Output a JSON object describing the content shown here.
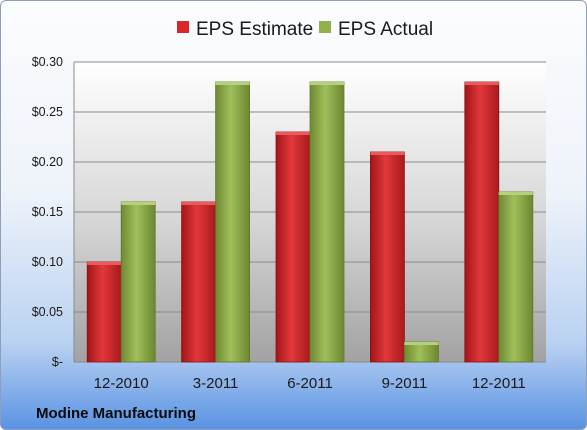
{
  "chart_data": {
    "type": "bar",
    "categories": [
      "12-2010",
      "3-2011",
      "6-2011",
      "9-2011",
      "12-2011"
    ],
    "series": [
      {
        "name": "EPS Estimate",
        "values": [
          0.1,
          0.16,
          0.23,
          0.21,
          0.28
        ],
        "color": "#d8262a"
      },
      {
        "name": "EPS Actual",
        "values": [
          0.16,
          0.28,
          0.28,
          0.02,
          0.17
        ],
        "color": "#8fb04a"
      }
    ],
    "yticks": [
      0,
      0.05,
      0.1,
      0.15,
      0.2,
      0.25,
      0.3
    ],
    "ytick_labels": [
      "$-",
      "$0.05",
      "$0.10",
      "$0.15",
      "$0.20",
      "$0.25",
      "$0.30"
    ],
    "ylim": [
      0,
      0.3
    ],
    "legend_position": "top",
    "grid": true,
    "company": "Modine Manufacturing"
  }
}
